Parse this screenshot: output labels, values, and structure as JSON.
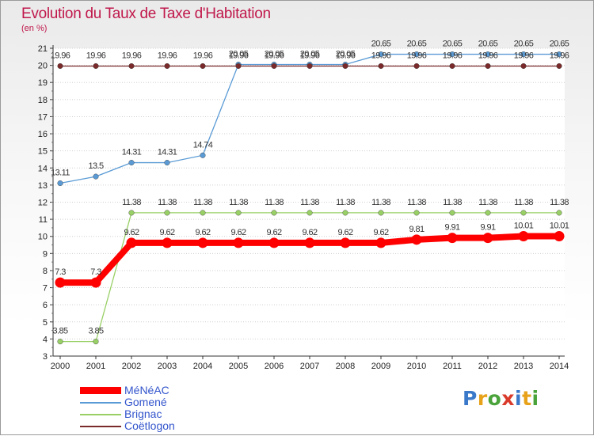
{
  "chart_data": {
    "type": "line",
    "title": "Evolution du Taux de Taxe d'Habitation",
    "subtitle": "(en %)",
    "x": [
      "2000",
      "2001",
      "2002",
      "2003",
      "2004",
      "2005",
      "2006",
      "2007",
      "2008",
      "2009",
      "2010",
      "2011",
      "2012",
      "2013",
      "2014"
    ],
    "ylim": [
      3,
      21
    ],
    "yticks": [
      3,
      4,
      5,
      6,
      7,
      8,
      9,
      10,
      11,
      12,
      13,
      14,
      15,
      16,
      17,
      18,
      19,
      20,
      21
    ],
    "grid": "horizontal dotted",
    "series": [
      {
        "name": "MéNéAC",
        "color": "#ff0000",
        "emphasis": true,
        "values": [
          7.3,
          7.3,
          9.62,
          9.62,
          9.62,
          9.62,
          9.62,
          9.62,
          9.62,
          9.62,
          9.81,
          9.91,
          9.91,
          10.01,
          10.01
        ],
        "labels": [
          "7.3",
          "7.3",
          "9.62",
          "9.62",
          "9.62",
          "9.62",
          "9.62",
          "9.62",
          "9.62",
          "9.62",
          "9.81",
          "9.91",
          "9.91",
          "10.01",
          "10.01"
        ]
      },
      {
        "name": "Gomené",
        "color": "#5b9bd5",
        "emphasis": false,
        "values": [
          13.11,
          13.5,
          14.31,
          14.31,
          14.74,
          20.05,
          20.05,
          20.05,
          20.05,
          20.65,
          20.65,
          20.65,
          20.65,
          20.65,
          20.65
        ],
        "labels": [
          "13.11",
          "13.5",
          "14.31",
          "14.31",
          "14.74",
          "20.05",
          "20.05",
          "20.05",
          "20.05",
          "20.65",
          "20.65",
          "20.65",
          "20.65",
          "20.65",
          "20.65"
        ]
      },
      {
        "name": "Brignac",
        "color": "#99d066",
        "emphasis": false,
        "values": [
          3.85,
          3.85,
          11.38,
          11.38,
          11.38,
          11.38,
          11.38,
          11.38,
          11.38,
          11.38,
          11.38,
          11.38,
          11.38,
          11.38,
          11.38
        ],
        "labels": [
          "3.85",
          "3.85",
          "11.38",
          "11.38",
          "11.38",
          "11.38",
          "11.38",
          "11.38",
          "11.38",
          "11.38",
          "11.38",
          "11.38",
          "11.38",
          "11.38",
          "11.38"
        ]
      },
      {
        "name": "Coëtlogon",
        "color": "#7a2a2a",
        "emphasis": false,
        "values": [
          19.96,
          19.96,
          19.96,
          19.96,
          19.96,
          19.96,
          19.96,
          19.96,
          19.96,
          19.96,
          19.96,
          19.96,
          19.96,
          19.96,
          19.96
        ],
        "labels": [
          "19.96",
          "19.96",
          "19.96",
          "19.96",
          "19.96",
          "19.96",
          "19.96",
          "19.96",
          "19.96",
          "19.96",
          "19.96",
          "19.96",
          "19.96",
          "19.96",
          "19.96"
        ]
      }
    ],
    "legend_position": "bottom-left"
  },
  "legend": [
    {
      "name": "MéNéAC",
      "color": "#ff0000"
    },
    {
      "name": "Gomené",
      "color": "#5b9bd5"
    },
    {
      "name": "Brignac",
      "color": "#99d066"
    },
    {
      "name": "Coëtlogon",
      "color": "#7a2a2a"
    }
  ],
  "logo": {
    "text": "Proxiti",
    "letters": [
      {
        "ch": "P",
        "color": "#3a78c9"
      },
      {
        "ch": "r",
        "color": "#e8a21a"
      },
      {
        "ch": "o",
        "color": "#4aa33a"
      },
      {
        "ch": "x",
        "color": "#d93a2a"
      },
      {
        "ch": "i",
        "color": "#3a78c9"
      },
      {
        "ch": "t",
        "color": "#e8a21a"
      },
      {
        "ch": "i",
        "color": "#4aa33a"
      }
    ]
  }
}
